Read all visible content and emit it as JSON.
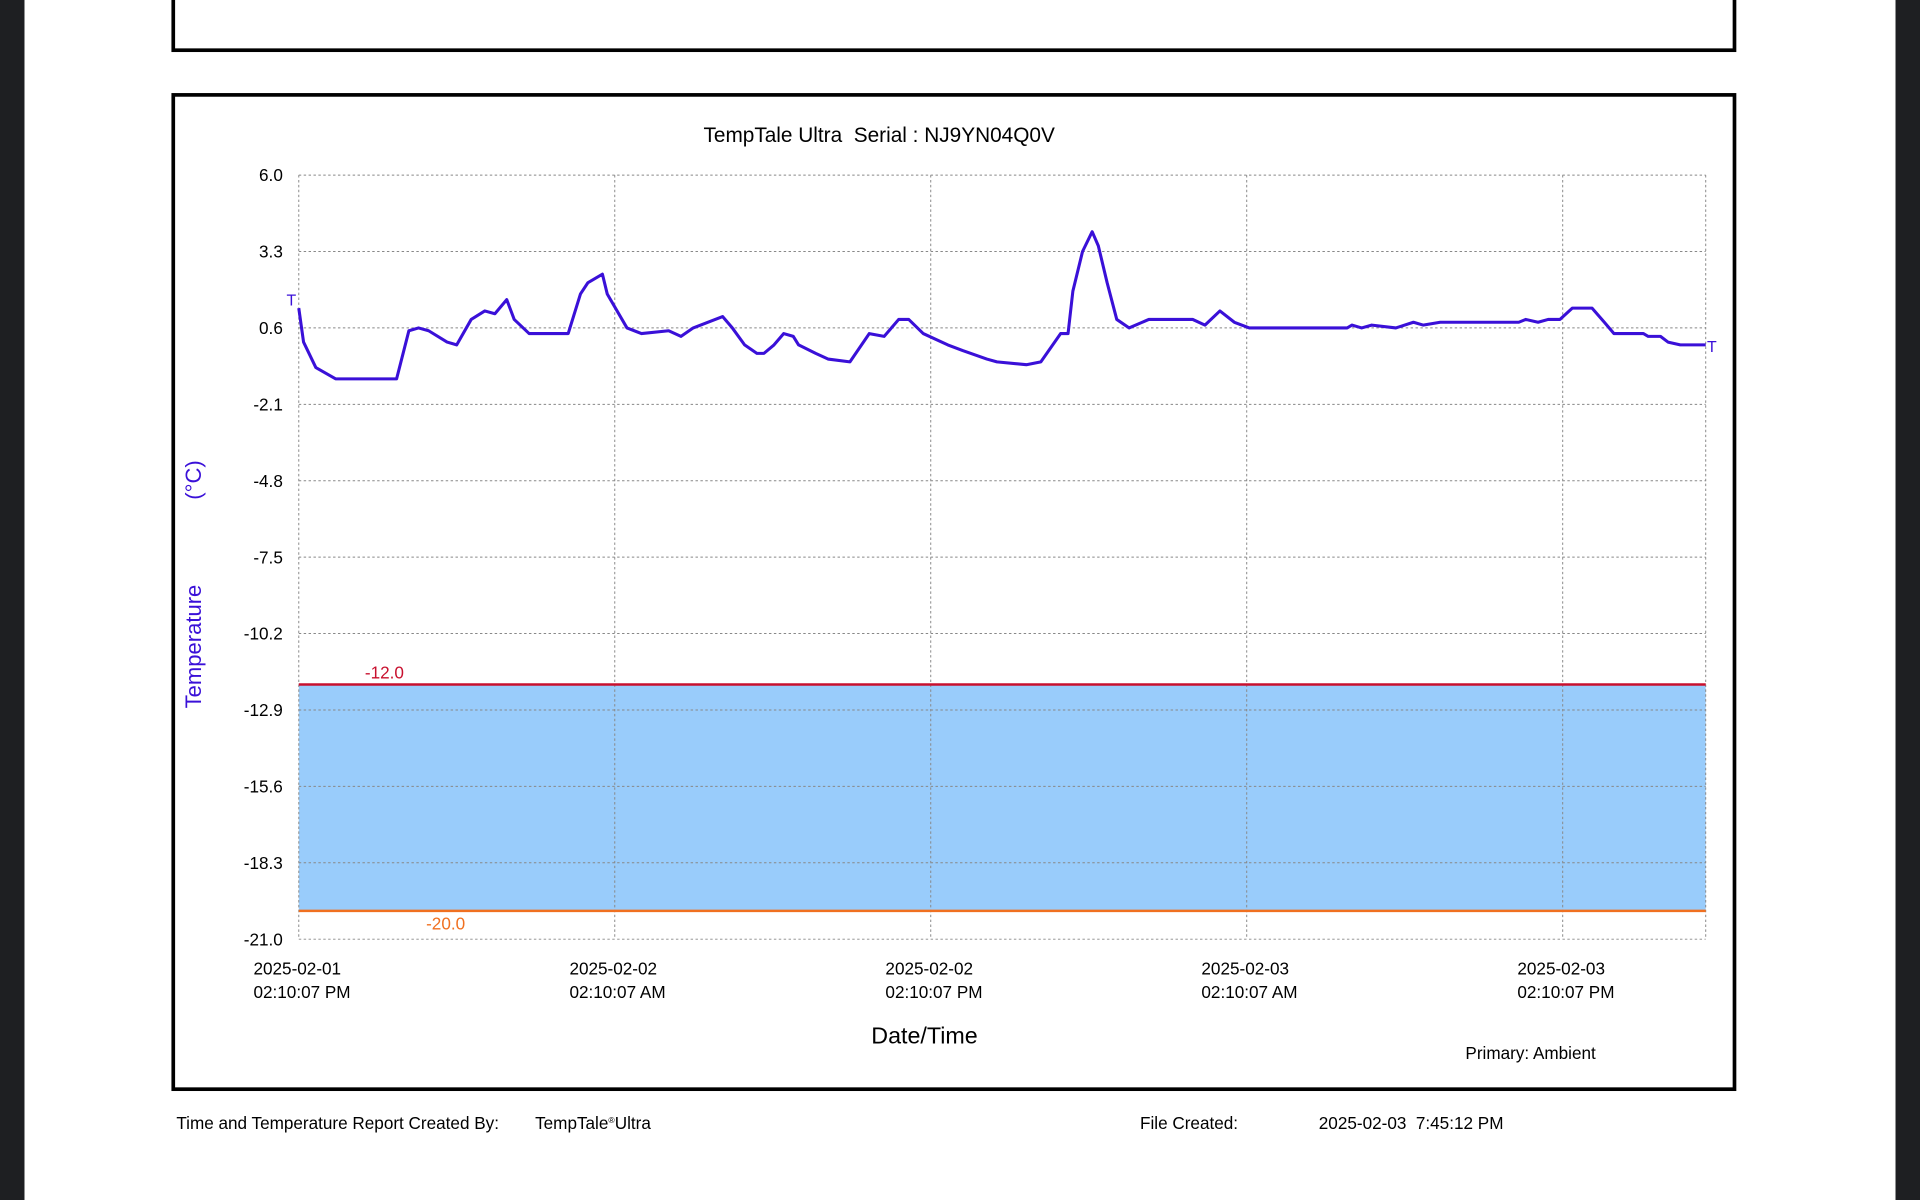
{
  "chart_data": {
    "type": "line",
    "title": "TempTale Ultra  Serial : NJ9YN04Q0V",
    "xlabel": "Date/Time",
    "ylabel": "Temperature",
    "yunit": "(°C)",
    "xlim": [
      "2025-02-01T14:10:07",
      "2025-02-03T19:36:00"
    ],
    "xticks": [
      {
        "value": "2025-02-01T14:10:07",
        "label": [
          "2025-02-01",
          "02:10:07 PM"
        ]
      },
      {
        "value": "2025-02-02T02:10:07",
        "label": [
          "2025-02-02",
          "02:10:07 AM"
        ]
      },
      {
        "value": "2025-02-02T14:10:07",
        "label": [
          "2025-02-02",
          "02:10:07 PM"
        ]
      },
      {
        "value": "2025-02-03T02:10:07",
        "label": [
          "2025-02-03",
          "02:10:07 AM"
        ]
      },
      {
        "value": "2025-02-03T14:10:07",
        "label": [
          "2025-02-03",
          "02:10:07 PM"
        ]
      }
    ],
    "ylim": [
      -21,
      6
    ],
    "yticks": [
      {
        "value": 6,
        "label": "6.0"
      },
      3.3,
      0.6,
      -2.1,
      -4.8,
      -7.5,
      -10.2,
      -12.9,
      -15.6,
      -18.3,
      {
        "value": -21,
        "label": "-21.0"
      }
    ],
    "grid": true,
    "thresholds": [
      {
        "value": -12,
        "label": "-12.0",
        "color": "#c8102e"
      },
      {
        "value": -20,
        "label": "-20.0",
        "color": "#f07020"
      }
    ],
    "band_color": "#99ccfb",
    "point_markers": {
      "start": "T",
      "end": "T"
    },
    "series": [
      {
        "name": "Primary: Ambient",
        "color": "#3a10d8",
        "x": [
          "2025-02-01T14:10:07",
          "2025-02-01T14:21",
          "2025-02-01T14:49",
          "2025-02-01T15:34",
          "2025-02-01T17:53",
          "2025-02-01T18:21",
          "2025-02-01T18:43",
          "2025-02-01T19:06",
          "2025-02-01T19:48",
          "2025-02-01T20:10",
          "2025-02-01T20:43",
          "2025-02-01T21:14",
          "2025-02-01T21:37",
          "2025-02-01T22:04",
          "2025-02-01T22:21",
          "2025-02-01T22:55",
          "2025-02-02T00:24",
          "2025-02-02T00:52",
          "2025-02-02T01:09",
          "2025-02-02T01:42",
          "2025-02-02T01:53",
          "2025-02-02T02:38",
          "2025-02-02T03:11",
          "2025-02-02T04:13",
          "2025-02-02T04:41",
          "2025-02-02T05:09",
          "2025-02-02T06:16",
          "2025-02-02T06:38",
          "2025-02-02T07:06",
          "2025-02-02T07:34",
          "2025-02-02T07:50",
          "2025-02-02T08:13",
          "2025-02-02T08:35",
          "2025-02-02T08:57",
          "2025-02-02T09:09",
          "2025-02-02T09:48",
          "2025-02-02T10:16",
          "2025-02-02T11:06",
          "2025-02-02T11:50",
          "2025-02-02T12:24",
          "2025-02-02T12:57",
          "2025-02-02T13:20",
          "2025-02-02T13:53",
          "2025-02-02T14:49",
          "2025-02-02T15:23",
          "2025-02-02T16:18",
          "2025-02-02T16:41",
          "2025-02-02T17:48",
          "2025-02-02T18:21",
          "2025-02-02T19:06",
          "2025-02-02T19:23",
          "2025-02-02T19:34",
          "2025-02-02T19:56",
          "2025-02-02T20:18",
          "2025-02-02T20:32",
          "2025-02-02T20:52",
          "2025-02-02T21:14",
          "2025-02-02T21:42",
          "2025-02-02T22:27",
          "2025-02-03T00:07",
          "2025-02-03T00:35",
          "2025-02-03T01:09",
          "2025-02-03T01:42",
          "2025-02-03T02:16",
          "2025-02-03T05:59",
          "2025-02-03T06:10",
          "2025-02-03T06:32",
          "2025-02-03T06:55",
          "2025-02-03T07:50",
          "2025-02-03T08:30",
          "2025-02-03T08:52",
          "2025-02-03T09:31",
          "2025-02-03T12:30",
          "2025-02-03T12:46",
          "2025-02-03T13:14",
          "2025-02-03T13:37",
          "2025-02-03T14:04",
          "2025-02-03T14:32",
          "2025-02-03T15:17",
          "2025-02-03T15:45",
          "2025-02-03T16:07",
          "2025-02-03T17:14",
          "2025-02-03T17:25",
          "2025-02-03T17:53",
          "2025-02-03T18:10",
          "2025-02-03T18:38",
          "2025-02-03T19:36:00"
        ],
        "values": [
          1.3,
          0.1,
          -0.8,
          -1.2,
          -1.2,
          0.5,
          0.6,
          0.5,
          0.1,
          0.0,
          0.9,
          1.2,
          1.1,
          1.6,
          0.9,
          0.4,
          0.4,
          1.8,
          2.2,
          2.5,
          1.8,
          0.6,
          0.4,
          0.5,
          0.3,
          0.6,
          1.0,
          0.6,
          0.0,
          -0.3,
          -0.3,
          0.0,
          0.4,
          0.3,
          0.0,
          -0.3,
          -0.5,
          -0.6,
          0.4,
          0.3,
          0.9,
          0.9,
          0.4,
          0.0,
          -0.2,
          -0.5,
          -0.6,
          -0.7,
          -0.6,
          0.4,
          0.4,
          1.9,
          3.3,
          4.0,
          3.5,
          2.2,
          0.9,
          0.6,
          0.9,
          0.9,
          0.7,
          1.2,
          0.8,
          0.6,
          0.6,
          0.7,
          0.6,
          0.7,
          0.6,
          0.8,
          0.7,
          0.8,
          0.8,
          0.9,
          0.8,
          0.9,
          0.9,
          1.3,
          1.3,
          0.8,
          0.4,
          0.4,
          0.3,
          0.3,
          0.1,
          0.0,
          0.0
        ]
      }
    ]
  },
  "footer": {
    "created_by_label": "Time and Temperature Report Created By:",
    "created_by": "TempTale",
    "created_by_mark": "®",
    "created_by_suffix": "Ultra",
    "file_created_label": "File Created:",
    "file_created": "2025-02-03  7:45:12 PM"
  }
}
